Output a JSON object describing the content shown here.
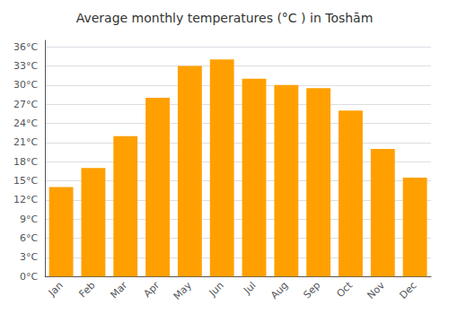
{
  "chart_data": {
    "type": "bar",
    "title": "Average monthly temperatures (°C ) in Toshām",
    "categories": [
      "Jan",
      "Feb",
      "Mar",
      "Apr",
      "May",
      "Jun",
      "Jul",
      "Aug",
      "Sep",
      "Oct",
      "Nov",
      "Dec"
    ],
    "values": [
      14,
      17,
      22,
      28,
      33,
      34,
      31,
      30,
      29.5,
      26,
      20,
      15.5
    ],
    "color": "#FFA000",
    "ylim": [
      0,
      37
    ],
    "yticks": [
      {
        "value": 0,
        "label": "0°C"
      },
      {
        "value": 3,
        "label": "3°C"
      },
      {
        "value": 6,
        "label": "6°C"
      },
      {
        "value": 9,
        "label": "9°C"
      },
      {
        "value": 12,
        "label": "12°C"
      },
      {
        "value": 15,
        "label": "15°C"
      },
      {
        "value": 18,
        "label": "18°C"
      },
      {
        "value": 21,
        "label": "21°C"
      },
      {
        "value": 24,
        "label": "24°C"
      },
      {
        "value": 27,
        "label": "27°C"
      },
      {
        "value": 30,
        "label": "30°C"
      },
      {
        "value": 33,
        "label": "33°C"
      },
      {
        "value": 36,
        "label": "36°C"
      }
    ],
    "grid": true
  }
}
